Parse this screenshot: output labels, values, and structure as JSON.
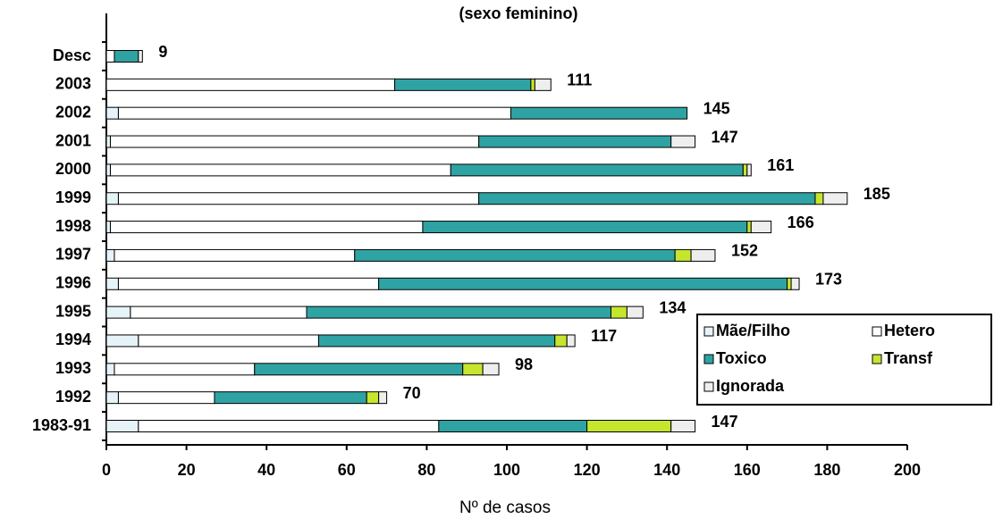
{
  "chart_data": {
    "type": "stacked-barh",
    "title": "(sexo feminino)",
    "x_label": "Nº de casos",
    "categories": [
      "Desc",
      "2003",
      "2002",
      "2001",
      "2000",
      "1999",
      "1998",
      "1997",
      "1996",
      "1995",
      "1994",
      "1993",
      "1992",
      "1983-91"
    ],
    "series": [
      {
        "name": "Mãe/Filho",
        "color": "#e6f3f8",
        "values": [
          0,
          0,
          3,
          1,
          1,
          3,
          1,
          2,
          3,
          6,
          8,
          2,
          3,
          8
        ]
      },
      {
        "name": "Hetero",
        "color": "#ffffff",
        "values": [
          2,
          72,
          98,
          92,
          85,
          90,
          78,
          60,
          65,
          44,
          45,
          35,
          24,
          75
        ]
      },
      {
        "name": "Toxico",
        "color": "#2fa3a3",
        "values": [
          6,
          34,
          44,
          48,
          73,
          84,
          81,
          80,
          102,
          76,
          59,
          52,
          38,
          37
        ]
      },
      {
        "name": "Transf",
        "color": "#c6e62e",
        "values": [
          0,
          1,
          0,
          0,
          1,
          2,
          1,
          4,
          1,
          4,
          3,
          5,
          3,
          21
        ]
      },
      {
        "name": "Ignorada",
        "color": "#eeeeee",
        "values": [
          1,
          4,
          0,
          6,
          1,
          6,
          5,
          6,
          2,
          4,
          2,
          4,
          2,
          6
        ]
      }
    ],
    "totals": [
      9,
      111,
      145,
      147,
      161,
      185,
      166,
      152,
      173,
      134,
      117,
      98,
      70,
      147
    ],
    "xlim": [
      0,
      200
    ],
    "xticks": [
      0,
      20,
      40,
      60,
      80,
      100,
      120,
      140,
      160,
      180,
      200
    ],
    "legend": "lower right"
  }
}
